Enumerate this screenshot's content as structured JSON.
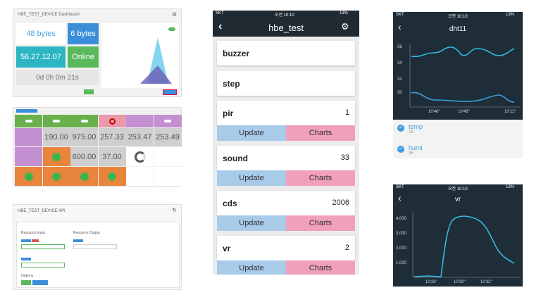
{
  "dashboard": {
    "title": "HBE_TEST_DEVICE Dashboard",
    "tiles": [
      "48 bytes",
      "6 bytes",
      "56.27.12.07",
      "Online",
      "0d 0h 0m 21s"
    ]
  },
  "widgets": {
    "values": [
      "190.00",
      "975.00",
      "257.33",
      "253.47",
      "253.49",
      "600.00",
      "37.00"
    ]
  },
  "api": {
    "title": "HBE_TEST_DEVICE API",
    "resource_input": "Resource Input",
    "resource_output": "Resource Output",
    "options": "Options"
  },
  "phone": {
    "status": {
      "carrier": "SKT",
      "time": "오전 10:10",
      "battery": "13%"
    },
    "title": "hbe_test",
    "update": "Update",
    "charts": "Charts",
    "cards": [
      {
        "name": "buzzer"
      },
      {
        "name": "step"
      },
      {
        "name": "pir",
        "value": 1
      },
      {
        "name": "sound",
        "value": 33
      },
      {
        "name": "cds",
        "value": 2006
      },
      {
        "name": "vr",
        "value": 2
      }
    ]
  },
  "dht11": {
    "title": "dht11",
    "yticks": [
      "36",
      "34",
      "32",
      "30"
    ],
    "xticks": [
      "10'46\"",
      "10'48\"",
      "10'12\""
    ],
    "legend": [
      {
        "name": "temp",
        "value": 29
      },
      {
        "name": "humi",
        "value": 36
      }
    ]
  },
  "vr": {
    "title": "vr",
    "yticks": [
      "4,000",
      "3,000",
      "2,000",
      "1,000"
    ],
    "xticks": [
      "10'28\"",
      "10'30\"",
      "10'32\""
    ]
  }
}
